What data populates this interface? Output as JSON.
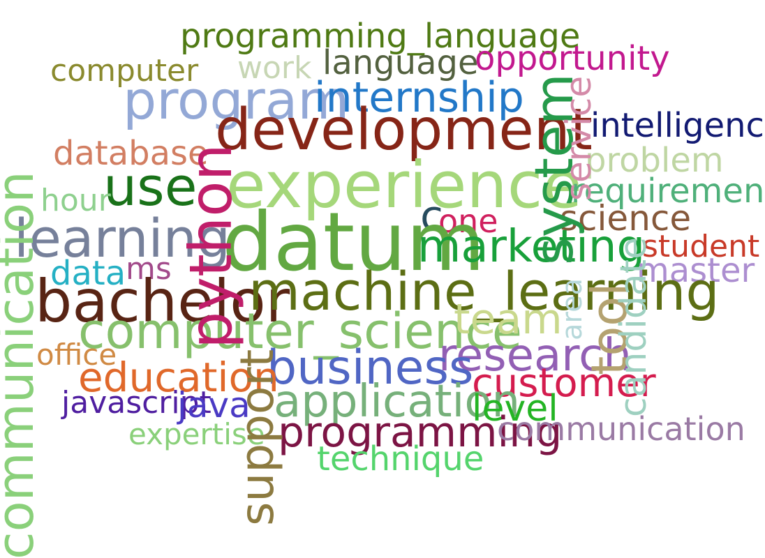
{
  "colors": {
    "background": "#ffffff"
  },
  "words": [
    {
      "text": "programming_language",
      "color": "#4f7a14"
    },
    {
      "text": "computer",
      "color": "#8a8a2e"
    },
    {
      "text": "work",
      "color": "#c7d6b4"
    },
    {
      "text": "language",
      "color": "#53613f"
    },
    {
      "text": "opportunity",
      "color": "#c2188e"
    },
    {
      "text": "program",
      "color": "#93a8d6"
    },
    {
      "text": "internship",
      "color": "#2278c8"
    },
    {
      "text": "development",
      "color": "#862517"
    },
    {
      "text": "intelligence",
      "color": "#121a72"
    },
    {
      "text": "database",
      "color": "#d27e62"
    },
    {
      "text": "problem",
      "color": "#bfd6a3"
    },
    {
      "text": "experience",
      "color": "#a5d77a"
    },
    {
      "text": "use",
      "color": "#197219"
    },
    {
      "text": "requirement",
      "color": "#4fb07a"
    },
    {
      "text": "hour",
      "color": "#8ed08e"
    },
    {
      "text": "c",
      "color": "#264b5e"
    },
    {
      "text": "one",
      "color": "#d0205e"
    },
    {
      "text": "science",
      "color": "#85583a"
    },
    {
      "text": "learning",
      "color": "#76809a"
    },
    {
      "text": "datum",
      "color": "#62a842"
    },
    {
      "text": "marketing",
      "color": "#18a03a"
    },
    {
      "text": "student",
      "color": "#c83a28"
    },
    {
      "text": "data",
      "color": "#25b0c4"
    },
    {
      "text": "ms",
      "color": "#a24a8a"
    },
    {
      "text": "master",
      "color": "#ac8ed0"
    },
    {
      "text": "bachelor",
      "color": "#582414"
    },
    {
      "text": "machine_learning",
      "color": "#5c6e14"
    },
    {
      "text": "computer_science",
      "color": "#86c06c"
    },
    {
      "text": "team",
      "color": "#c9d88c"
    },
    {
      "text": "office",
      "color": "#d08a44"
    },
    {
      "text": "research",
      "color": "#925fb4"
    },
    {
      "text": "business",
      "color": "#5066c4"
    },
    {
      "text": "education",
      "color": "#e0682a"
    },
    {
      "text": "customer",
      "color": "#d41c4e"
    },
    {
      "text": "application",
      "color": "#76b07a"
    },
    {
      "text": "javascript",
      "color": "#4f1ea0"
    },
    {
      "text": "java",
      "color": "#4a3ac4"
    },
    {
      "text": "level",
      "color": "#24b424"
    },
    {
      "text": "expertise",
      "color": "#8ad07a"
    },
    {
      "text": "programming",
      "color": "#7c1444"
    },
    {
      "text": "communication",
      "color": "#9a7aa4"
    },
    {
      "text": "technique",
      "color": "#54d46c"
    },
    {
      "text": "python",
      "color": "#c01e6a"
    },
    {
      "text": "system",
      "color": "#259a4a"
    },
    {
      "text": "service",
      "color": "#d48aa8"
    },
    {
      "text": "tool",
      "color": "#b4a270"
    },
    {
      "text": "candidate",
      "color": "#9ed0c0"
    },
    {
      "text": "area",
      "color": "#b6d8da"
    },
    {
      "text": "support",
      "color": "#8c7a40"
    },
    {
      "text": "communication",
      "color": "#8ad07a"
    }
  ]
}
